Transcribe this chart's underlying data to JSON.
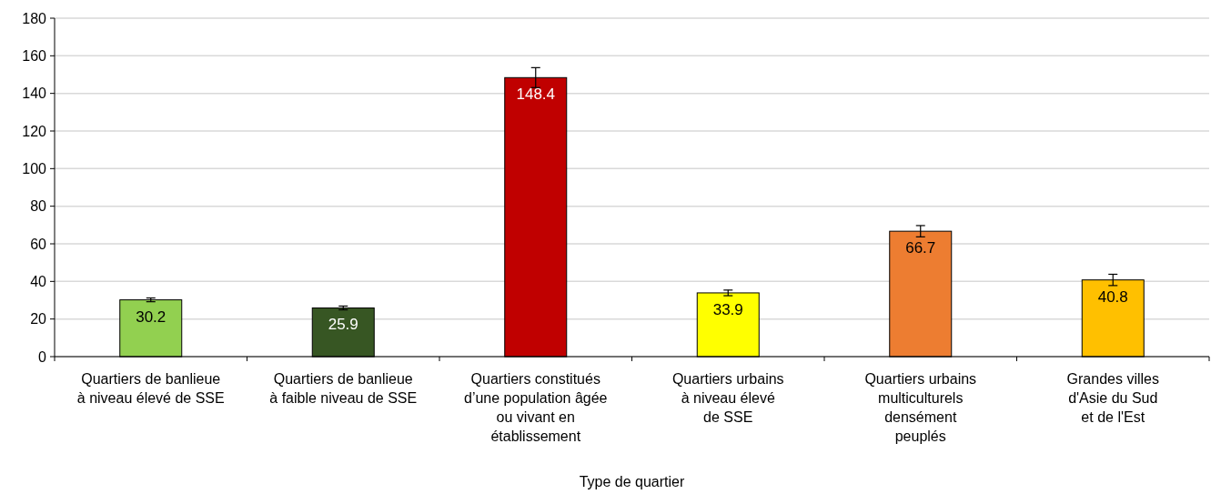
{
  "chart_data": {
    "type": "bar",
    "xlabel": "Type de quartier",
    "categories": [
      "Quartiers de banlieue\nà niveau élevé de SSE",
      "Quartiers de banlieue\nà faible niveau de SSE",
      "Quartiers constitués\nd’une population âgée\nou vivant en\nétablissement",
      "Quartiers urbains\nà niveau élevé\nde SSE",
      "Quartiers urbains\nmulticulturels\ndensément\npeuplés",
      "Grandes villes\nd'Asie du Sud\net de l'Est"
    ],
    "values": [
      30.2,
      25.9,
      148.4,
      33.9,
      66.7,
      40.8
    ],
    "colors": [
      "#92d050",
      "#375623",
      "#c00000",
      "#ffff00",
      "#ed7d31",
      "#ffc000"
    ],
    "errors": [
      1,
      1,
      5.3,
      1.5,
      3,
      3
    ],
    "data_labels": true,
    "ylim": [
      0,
      180
    ],
    "yticks": [
      0,
      20,
      40,
      60,
      80,
      100,
      120,
      140,
      160,
      180
    ],
    "grid": "y"
  }
}
